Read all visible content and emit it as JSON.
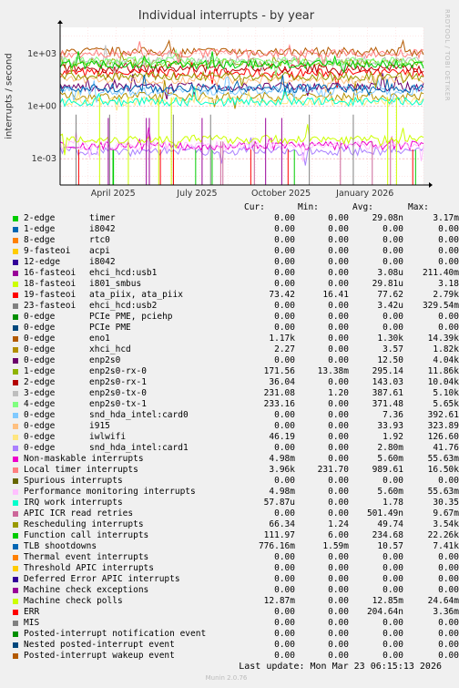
{
  "title": "Individual interrupts - by year",
  "ylabel": "interrupts / second",
  "side_text": "RRDTOOL / TOBI OETIKER",
  "columns": {
    "cur": "Cur:",
    "min": "Min:",
    "avg": "Avg:",
    "max": "Max:"
  },
  "footer": "Last update:  Mon Mar 23 06:15:13 2026",
  "munin": "Munin 2.0.76",
  "chart_data": {
    "type": "line",
    "title": "Individual interrupts - by year",
    "ylabel": "interrupts / second",
    "yscale": "log",
    "ytick_labels": [
      "1e+03",
      "1e+00",
      "1e-03"
    ],
    "ytick_values": [
      1000,
      1,
      0.001
    ],
    "xtick_labels": [
      "April 2025",
      "July 2025",
      "October 2025",
      "January 2026"
    ],
    "grid": true,
    "series": [
      {
        "name": "2-edge timer",
        "color": "#00cc00",
        "cur": "0.00",
        "min": "0.00",
        "avg": "29.08n",
        "max": "3.17m"
      },
      {
        "name": "1-edge i8042",
        "color": "#0066b3",
        "cur": "0.00",
        "min": "0.00",
        "avg": "0.00",
        "max": "0.00"
      },
      {
        "name": "8-edge rtc0",
        "color": "#ff8000",
        "cur": "0.00",
        "min": "0.00",
        "avg": "0.00",
        "max": "0.00"
      },
      {
        "name": "9-fasteoi acpi",
        "color": "#ffcc00",
        "cur": "0.00",
        "min": "0.00",
        "avg": "0.00",
        "max": "0.00"
      },
      {
        "name": "12-edge i8042",
        "color": "#330099",
        "cur": "0.00",
        "min": "0.00",
        "avg": "0.00",
        "max": "0.00"
      },
      {
        "name": "16-fasteoi ehci_hcd:usb1",
        "color": "#990099",
        "cur": "0.00",
        "min": "0.00",
        "avg": "3.08u",
        "max": "211.40m"
      },
      {
        "name": "18-fasteoi i801_smbus",
        "color": "#ccff00",
        "cur": "0.00",
        "min": "0.00",
        "avg": "29.81u",
        "max": "3.18"
      },
      {
        "name": "19-fasteoi ata_piix, ata_piix",
        "color": "#ff0000",
        "cur": "73.42",
        "min": "16.41",
        "avg": "77.62",
        "max": "2.79k"
      },
      {
        "name": "23-fasteoi ehci_hcd:usb2",
        "color": "#808080",
        "cur": "0.00",
        "min": "0.00",
        "avg": "3.42u",
        "max": "329.54m"
      },
      {
        "name": "0-edge PCIe PME, pciehp",
        "color": "#008f00",
        "cur": "0.00",
        "min": "0.00",
        "avg": "0.00",
        "max": "0.00"
      },
      {
        "name": "0-edge PCIe PME",
        "color": "#00487d",
        "cur": "0.00",
        "min": "0.00",
        "avg": "0.00",
        "max": "0.00"
      },
      {
        "name": "0-edge eno1",
        "color": "#b35a00",
        "cur": "1.17k",
        "min": "0.00",
        "avg": "1.30k",
        "max": "14.39k"
      },
      {
        "name": "0-edge xhci_hcd",
        "color": "#b38f00",
        "cur": "2.27",
        "min": "0.00",
        "avg": "3.57",
        "max": "1.82k"
      },
      {
        "name": "0-edge enp2s0",
        "color": "#6b006b",
        "cur": "0.00",
        "min": "0.00",
        "avg": "12.50",
        "max": "4.04k"
      },
      {
        "name": "1-edge enp2s0-rx-0",
        "color": "#8fb300",
        "cur": "171.56",
        "min": "13.38m",
        "avg": "295.14",
        "max": "11.86k"
      },
      {
        "name": "2-edge enp2s0-rx-1",
        "color": "#b30000",
        "cur": "36.04",
        "min": "0.00",
        "avg": "143.03",
        "max": "10.04k"
      },
      {
        "name": "3-edge enp2s0-tx-0",
        "color": "#bebebe",
        "cur": "231.08",
        "min": "1.20",
        "avg": "387.61",
        "max": "5.10k"
      },
      {
        "name": "4-edge enp2s0-tx-1",
        "color": "#80ff80",
        "cur": "233.16",
        "min": "0.00",
        "avg": "371.48",
        "max": "5.65k"
      },
      {
        "name": "0-edge snd_hda_intel:card0",
        "color": "#80c9ff",
        "cur": "0.00",
        "min": "0.00",
        "avg": "7.36",
        "max": "392.61"
      },
      {
        "name": "0-edge i915",
        "color": "#ffc080",
        "cur": "0.00",
        "min": "0.00",
        "avg": "33.93",
        "max": "323.89"
      },
      {
        "name": "0-edge iwlwifi",
        "color": "#ffe680",
        "cur": "46.19",
        "min": "0.00",
        "avg": "1.92",
        "max": "126.60"
      },
      {
        "name": "0-edge snd_hda_intel:card1",
        "color": "#aa80ff",
        "cur": "0.00",
        "min": "0.00",
        "avg": "2.80m",
        "max": "41.76"
      },
      {
        "name": "Non-maskable interrupts",
        "color": "#ee00cc",
        "cur": "4.98m",
        "min": "0.00",
        "avg": "5.60m",
        "max": "55.63m"
      },
      {
        "name": "Local timer interrupts",
        "color": "#ff8080",
        "cur": "3.96k",
        "min": "231.70",
        "avg": "989.61",
        "max": "16.50k"
      },
      {
        "name": "Spurious interrupts",
        "color": "#666600",
        "cur": "0.00",
        "min": "0.00",
        "avg": "0.00",
        "max": "0.00"
      },
      {
        "name": "Performance monitoring interrupts",
        "color": "#ffbfff",
        "cur": "4.98m",
        "min": "0.00",
        "avg": "5.60m",
        "max": "55.63m"
      },
      {
        "name": "IRQ work interrupts",
        "color": "#00ffcc",
        "cur": "57.87u",
        "min": "0.00",
        "avg": "1.78",
        "max": "30.35"
      },
      {
        "name": "APIC ICR read retries",
        "color": "#cc6699",
        "cur": "0.00",
        "min": "0.00",
        "avg": "501.49n",
        "max": "9.67m"
      },
      {
        "name": "Rescheduling interrupts",
        "color": "#999900",
        "cur": "66.34",
        "min": "1.24",
        "avg": "49.74",
        "max": "3.54k"
      },
      {
        "name": "Function call interrupts",
        "color": "#00cc00",
        "cur": "111.97",
        "min": "6.00",
        "avg": "234.68",
        "max": "22.26k"
      },
      {
        "name": "TLB shootdowns",
        "color": "#0066b3",
        "cur": "776.16m",
        "min": "1.59m",
        "avg": "10.57",
        "max": "7.41k"
      },
      {
        "name": "Thermal event interrupts",
        "color": "#ff8000",
        "cur": "0.00",
        "min": "0.00",
        "avg": "0.00",
        "max": "0.00"
      },
      {
        "name": "Threshold APIC interrupts",
        "color": "#ffcc00",
        "cur": "0.00",
        "min": "0.00",
        "avg": "0.00",
        "max": "0.00"
      },
      {
        "name": "Deferred Error APIC interrupts",
        "color": "#330099",
        "cur": "0.00",
        "min": "0.00",
        "avg": "0.00",
        "max": "0.00"
      },
      {
        "name": "Machine check exceptions",
        "color": "#990099",
        "cur": "0.00",
        "min": "0.00",
        "avg": "0.00",
        "max": "0.00"
      },
      {
        "name": "Machine check polls",
        "color": "#ccff00",
        "cur": "12.87m",
        "min": "0.00",
        "avg": "12.85m",
        "max": "24.64m"
      },
      {
        "name": "ERR",
        "color": "#ff0000",
        "cur": "0.00",
        "min": "0.00",
        "avg": "204.64n",
        "max": "3.36m"
      },
      {
        "name": "MIS",
        "color": "#808080",
        "cur": "0.00",
        "min": "0.00",
        "avg": "0.00",
        "max": "0.00"
      },
      {
        "name": "Posted-interrupt notification event",
        "color": "#008f00",
        "cur": "0.00",
        "min": "0.00",
        "avg": "0.00",
        "max": "0.00"
      },
      {
        "name": "Nested posted-interrupt event",
        "color": "#00487d",
        "cur": "0.00",
        "min": "0.00",
        "avg": "0.00",
        "max": "0.00"
      },
      {
        "name": "Posted-interrupt wakeup event",
        "color": "#b35a00",
        "cur": "0.00",
        "min": "0.00",
        "avg": "0.00",
        "max": "0.00"
      }
    ]
  }
}
